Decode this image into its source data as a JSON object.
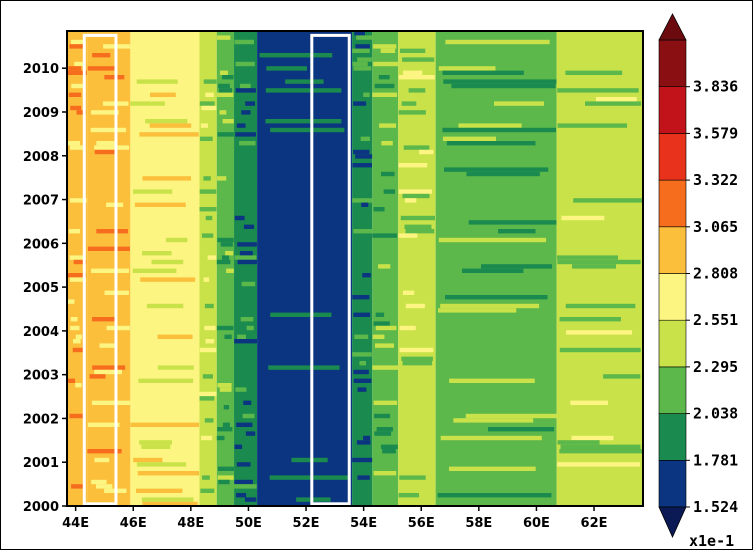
{
  "chart_data": {
    "type": "heatmap",
    "title": "",
    "xlabel": "",
    "ylabel": "",
    "x_range": [
      "43.7E",
      "63.7E"
    ],
    "y_range": [
      2000,
      2010.85
    ],
    "x_ticks": [
      "44E",
      "46E",
      "48E",
      "50E",
      "52E",
      "54E",
      "56E",
      "58E",
      "60E",
      "62E"
    ],
    "y_ticks": [
      "2000",
      "2001",
      "2002",
      "2003",
      "2004",
      "2005",
      "2006",
      "2007",
      "2008",
      "2009",
      "2010"
    ],
    "colorbar": {
      "levels": [
        1.524,
        1.781,
        2.038,
        2.295,
        2.551,
        2.808,
        3.065,
        3.322,
        3.579,
        3.836
      ],
      "labels": [
        "1.524",
        "1.781",
        "2.038",
        "2.295",
        "2.551",
        "2.808",
        "3.065",
        "3.322",
        "3.579",
        "3.836"
      ],
      "colors": [
        "#0b3580",
        "#1b8a4f",
        "#5cb84a",
        "#c9e24a",
        "#fdf581",
        "#fbbf3c",
        "#f66d1e",
        "#e8321b",
        "#c2121a",
        "#8a0f12"
      ],
      "over_color": "#6b0a0f",
      "under_color": "#0b1a55",
      "units": "x1e-1"
    },
    "longitude_bands": [
      {
        "lon": [
          43.7,
          44.4
        ],
        "level": 2.808
      },
      {
        "lon": [
          44.4,
          45.9
        ],
        "level": 2.808
      },
      {
        "lon": [
          45.9,
          48.3
        ],
        "level": 2.551
      },
      {
        "lon": [
          48.3,
          48.9
        ],
        "level": 2.295
      },
      {
        "lon": [
          48.9,
          49.5
        ],
        "level": 2.038
      },
      {
        "lon": [
          49.5,
          50.3
        ],
        "level": 1.781
      },
      {
        "lon": [
          50.3,
          53.6
        ],
        "level": 1.524
      },
      {
        "lon": [
          53.6,
          54.3
        ],
        "level": 1.781
      },
      {
        "lon": [
          54.3,
          55.2
        ],
        "level": 2.038
      },
      {
        "lon": [
          55.2,
          56.5
        ],
        "level": 2.295
      },
      {
        "lon": [
          56.5,
          60.7
        ],
        "level": 2.038
      },
      {
        "lon": [
          60.7,
          63.7
        ],
        "level": 2.295
      }
    ],
    "highlight_boxes": [
      {
        "lon": [
          44.3,
          45.4
        ],
        "year": [
          2000.05,
          2010.75
        ]
      },
      {
        "lon": [
          52.2,
          53.5
        ],
        "year": [
          2000.05,
          2010.75
        ]
      }
    ]
  }
}
